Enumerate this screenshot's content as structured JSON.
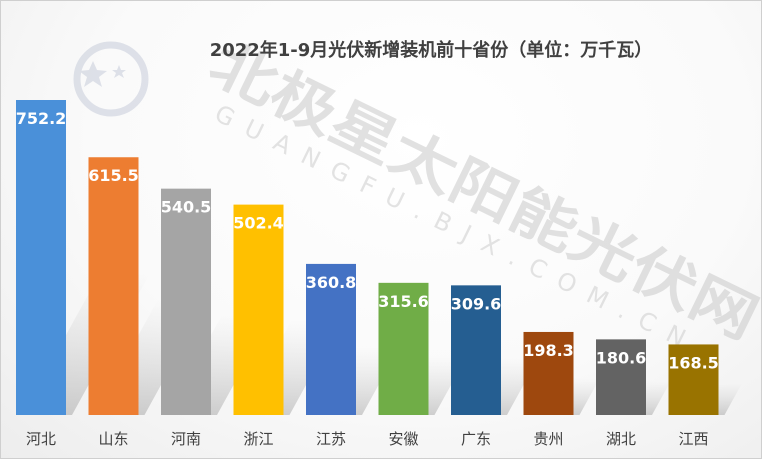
{
  "chart_data": {
    "type": "bar",
    "title": "2022年1-9月光伏新增装机前十省份（单位：万千瓦）",
    "categories": [
      "河北",
      "山东",
      "河南",
      "浙江",
      "江苏",
      "安徽",
      "广东",
      "贵州",
      "湖北",
      "江西"
    ],
    "values": [
      752.2,
      615.5,
      540.5,
      502.4,
      360.8,
      315.6,
      309.6,
      198.3,
      180.6,
      168.5
    ],
    "data_labels": [
      "752.2",
      "615.5",
      "540.5",
      "502.4",
      "360.8",
      "315.6",
      "309.6",
      "198.3",
      "180.6",
      "168.5"
    ],
    "colors": [
      "#4a90d9",
      "#ed7d31",
      "#a5a5a5",
      "#ffc000",
      "#4472c4",
      "#70ad47",
      "#255e91",
      "#9e480e",
      "#636363",
      "#997300"
    ],
    "xlabel": "",
    "ylabel": "",
    "ylim": [
      0,
      752.2
    ],
    "grid": false,
    "legend": "none"
  },
  "watermark": {
    "text_cn": "北极星太阳能光伏网",
    "text_en": "GUANGFU.BJX.COM.CN",
    "logo_icon": "polaris-star-logo-icon"
  }
}
